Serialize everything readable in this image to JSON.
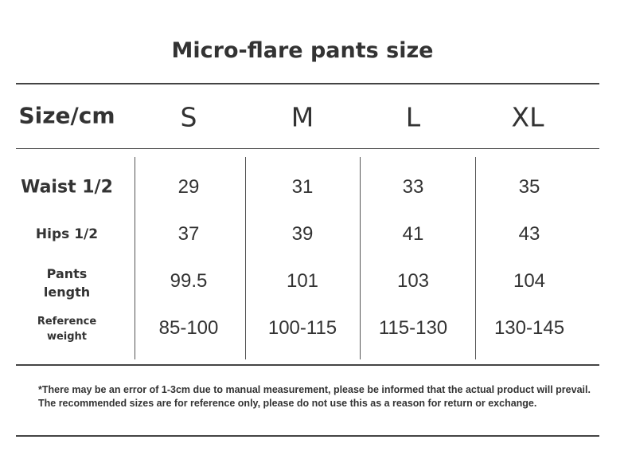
{
  "title": "Micro-flare pants size",
  "header": {
    "label": "Size/cm",
    "sizes": [
      "S",
      "M",
      "L",
      "XL"
    ]
  },
  "rows": [
    {
      "label": "Waist 1/2",
      "values": [
        "29",
        "31",
        "33",
        "35"
      ]
    },
    {
      "label": "Hips 1/2",
      "values": [
        "37",
        "39",
        "41",
        "43"
      ]
    },
    {
      "label_line1": "Pants",
      "label_line2": "length",
      "values": [
        "99.5",
        "101",
        "103",
        "104"
      ]
    },
    {
      "label_line1": "Reference",
      "label_line2": "weight",
      "values": [
        "85-100",
        "100-115",
        "115-130",
        "130-145"
      ]
    }
  ],
  "note": "*There may be an error of 1-3cm due to manual measurement, please be informed that the actual product will prevail.   The recommended sizes are for reference only, please do not use this as a reason for return or exchange."
}
